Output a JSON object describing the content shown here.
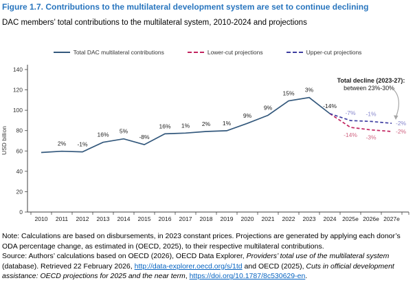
{
  "figure": {
    "title": "Figure 1.7. Contributions to the multilateral development system are set to continue declining",
    "subtitle": "DAC members’ total contributions to the multilateral system, 2010-2024 and projections"
  },
  "colors": {
    "title_blue": "#2875be",
    "main_line": "#33587c",
    "lower_line": "#c2235f",
    "upper_line": "#3d3da0",
    "lower_label": "#cf6381",
    "upper_label": "#8585cc",
    "annotation_arrow": "#a6a6a6",
    "link_blue": "#0563c1",
    "axis": "#404040"
  },
  "legend": {
    "items": [
      {
        "label": "Total DAC multilateral contributions",
        "style": "solid",
        "color": "#33587c"
      },
      {
        "label": "Lower-cut projections",
        "style": "dashed",
        "color": "#c2235f"
      },
      {
        "label": "Upper-cut projections",
        "style": "dashed",
        "color": "#3d3da0"
      }
    ]
  },
  "chart_data": {
    "type": "line",
    "title": "",
    "xlabel": "",
    "ylabel": "USD billion",
    "ylim": [
      0,
      140
    ],
    "yticks": [
      0,
      20,
      40,
      60,
      80,
      100,
      120,
      140
    ],
    "grid": false,
    "legend_position": "top",
    "categories": [
      "2010",
      "2011",
      "2012",
      "2013",
      "2014",
      "2015",
      "2016",
      "2017",
      "2018",
      "2019",
      "2020",
      "2021",
      "2022",
      "2023",
      "2024",
      "2025e",
      "2026e",
      "2027e"
    ],
    "series": [
      {
        "name": "Total DAC multilateral contributions",
        "color": "#33587c",
        "dashed": false,
        "values": [
          58.5,
          59.7,
          59.1,
          68.5,
          71.9,
          66.2,
          76.8,
          77.6,
          79.1,
          79.9,
          87.1,
          95.0,
          109.2,
          112.5,
          96.7,
          null,
          null,
          null
        ],
        "point_labels": [
          "",
          "2%",
          "-1%",
          "16%",
          "5%",
          "-8%",
          "16%",
          "1%",
          "2%",
          "1%",
          "9%",
          "9%",
          "15%",
          "3%",
          "-14%",
          "",
          "",
          ""
        ],
        "label_color": "#1a1a1a",
        "label_position": "above"
      },
      {
        "name": "Lower-cut projections",
        "color": "#c2235f",
        "dashed": true,
        "values": [
          null,
          null,
          null,
          null,
          null,
          null,
          null,
          null,
          null,
          null,
          null,
          null,
          null,
          null,
          96.7,
          83.2,
          80.7,
          79.1
        ],
        "point_labels": [
          "",
          "",
          "",
          "",
          "",
          "",
          "",
          "",
          "",
          "",
          "",
          "",
          "",
          "",
          "",
          "-14%",
          "-3%",
          "-2%"
        ],
        "label_color": "#cf6381",
        "label_position": "below"
      },
      {
        "name": "Upper-cut projections",
        "color": "#3d3da0",
        "dashed": true,
        "values": [
          null,
          null,
          null,
          null,
          null,
          null,
          null,
          null,
          null,
          null,
          null,
          null,
          null,
          null,
          96.7,
          89.9,
          89.0,
          87.2
        ],
        "point_labels": [
          "",
          "",
          "",
          "",
          "",
          "",
          "",
          "",
          "",
          "",
          "",
          "",
          "",
          "",
          "",
          "-7%",
          "-1%",
          "-2%"
        ],
        "label_color": "#8585cc",
        "label_position": "above"
      }
    ],
    "annotation": {
      "title": "Total decline (2023-27):",
      "subtitle": "between 23%-30%"
    }
  },
  "notes": {
    "note_segments": [
      {
        "text": "Note: Calculations are based on disbursements, in 2023 constant prices. Projections are generated by applying each donor’s ODA percentage change, as estimated in (OECD, 2025), to their respective multilateral contributions.",
        "style": "normal"
      }
    ],
    "source_segments": [
      {
        "text": "Source: Authors’ calculations based on OECD (2026), OECD Data Explorer, ",
        "style": "normal"
      },
      {
        "text": "Providers’ total use of the multilateral system",
        "style": "italic"
      },
      {
        "text": " (database). Retrieved 22 February 2026, ",
        "style": "normal"
      },
      {
        "text": "http://data-explorer.oecd.org/s/1td",
        "style": "link"
      },
      {
        "text": " and OECD (2025), ",
        "style": "normal"
      },
      {
        "text": "Cuts in official development assistance: OECD projections for 2025 and the near term",
        "style": "italic"
      },
      {
        "text": ", ",
        "style": "normal"
      },
      {
        "text": "https://doi.org/10.1787/8c530629-en",
        "style": "link"
      },
      {
        "text": ".",
        "style": "normal"
      }
    ]
  }
}
